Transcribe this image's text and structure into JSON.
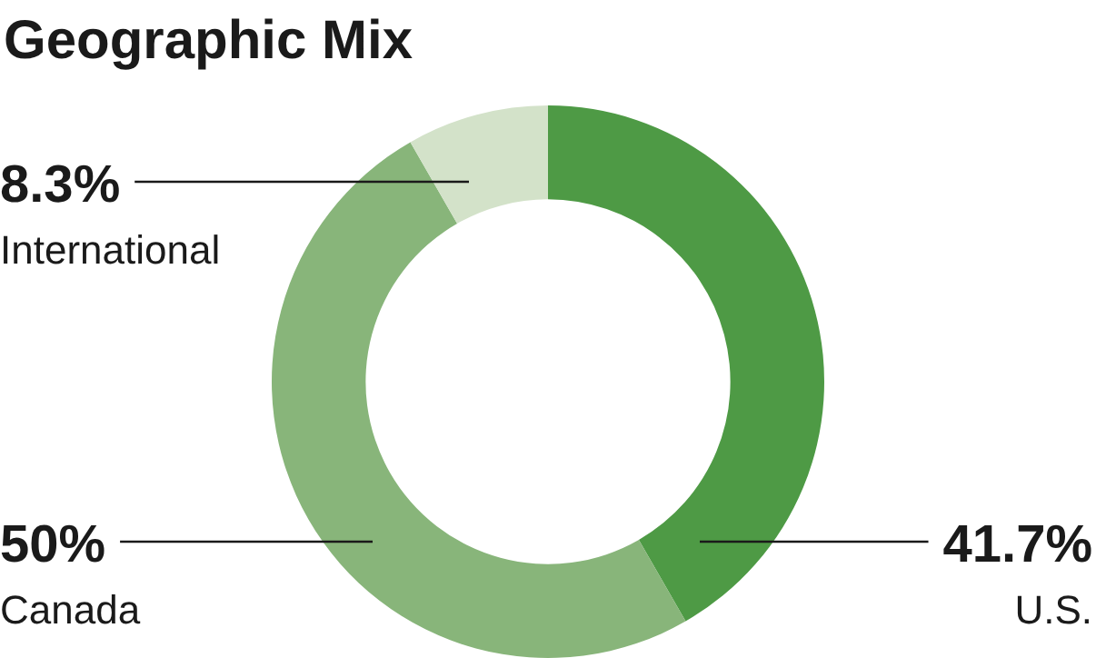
{
  "chart_data": {
    "type": "donut",
    "title": "Geographic Mix",
    "categories": [
      "U.S.",
      "Canada",
      "International"
    ],
    "values": [
      41.7,
      50,
      8.3
    ],
    "value_labels": [
      "41.7%",
      "50%",
      "8.3%"
    ],
    "colors": [
      "#4e9a45",
      "#88b57a",
      "#d3e2c9"
    ],
    "legend": false
  }
}
